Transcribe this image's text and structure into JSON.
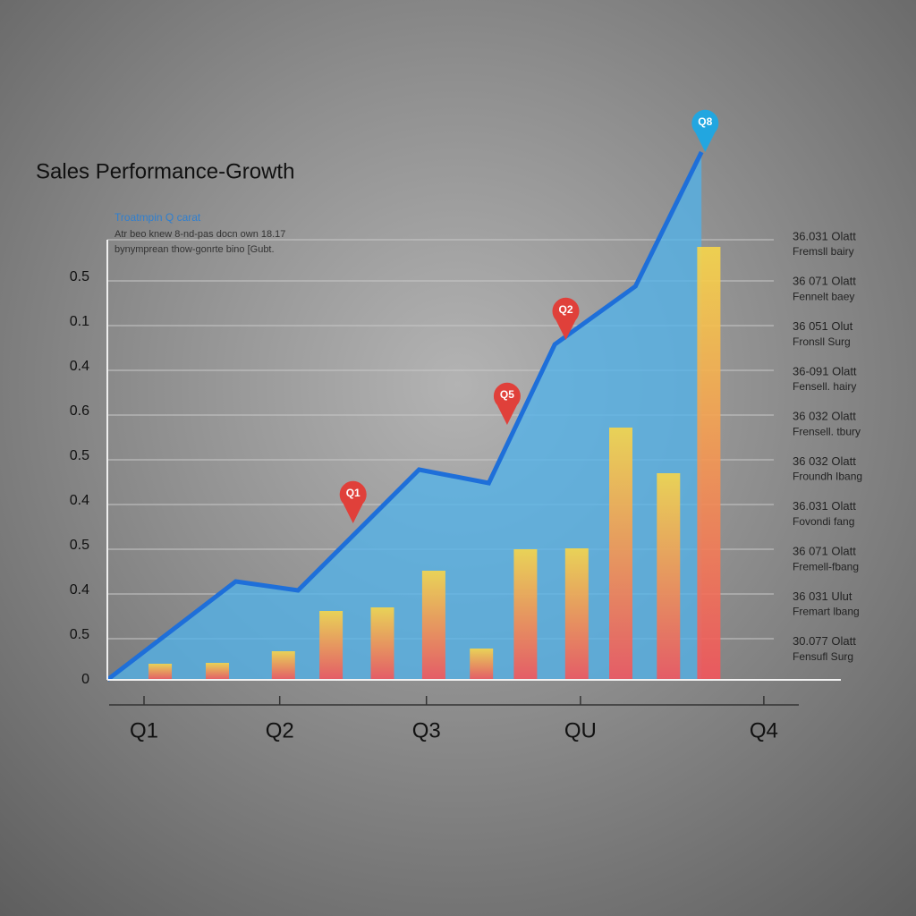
{
  "chart_data": {
    "type": "combo",
    "title": "Sales Performance-Growth",
    "subtitle": "Troatmpin Q carat",
    "notes": [
      "Atr beo knew 8-nd-pas docn own 18.17",
      "bynymprean thow-gonrte bino [Gubt."
    ],
    "xlim": [
      0,
      20
    ],
    "xticks": [
      {
        "value": 1,
        "label": "Q1"
      },
      {
        "value": 4.7,
        "label": "Q2"
      },
      {
        "value": 8.7,
        "label": "Q3"
      },
      {
        "value": 12.9,
        "label": "QU"
      },
      {
        "value": 17.9,
        "label": "Q4"
      }
    ],
    "ylim": [
      0,
      12
    ],
    "yticks": [
      0,
      {
        "value": 1,
        "label": "0.5"
      },
      {
        "value": 2,
        "label": "0.4"
      },
      {
        "value": 3,
        "label": "0.5"
      },
      {
        "value": 4,
        "label": "0.4"
      },
      {
        "value": 5,
        "label": "0.5"
      },
      {
        "value": 6,
        "label": "0.6"
      },
      {
        "value": 7,
        "label": "0.4"
      },
      {
        "value": 8,
        "label": "0.1"
      },
      {
        "value": 9,
        "label": "0.5"
      }
    ],
    "grid": true,
    "line": {
      "color": "#1e6fd9",
      "x": [
        0,
        3.5,
        5.2,
        8.5,
        10.4,
        12.2,
        14.4,
        16.2
      ],
      "values": [
        0,
        2.2,
        2.0,
        4.7,
        4.4,
        7.5,
        8.8,
        11.8
      ]
    },
    "bars": {
      "colors": [
        "#f7d64a",
        "#f2545b"
      ],
      "x": [
        1.44,
        3.0,
        4.8,
        6.1,
        7.5,
        8.9,
        10.2,
        11.4,
        12.8,
        14.0,
        15.3,
        16.4
      ],
      "values": [
        0.36,
        0.38,
        0.64,
        1.54,
        1.62,
        2.44,
        0.7,
        2.92,
        2.94,
        5.64,
        4.62,
        9.68
      ]
    },
    "annotations": [
      {
        "text": "Q1",
        "x": 6.7,
        "y": 3.5,
        "color": "#e0403a"
      },
      {
        "text": "Q5",
        "x": 10.9,
        "y": 5.7,
        "color": "#e0403a"
      },
      {
        "text": "Q2",
        "x": 12.5,
        "y": 7.6,
        "color": "#e0403a"
      },
      {
        "text": "Q8",
        "x": 16.3,
        "y": 11.8,
        "color": "#22a6e0"
      }
    ],
    "right_labels": [
      {
        "text": "36.031 Olatt",
        "subtext": "Fremsll bairy"
      },
      {
        "text": "36 071 Olatt",
        "subtext": "Fennelt baey"
      },
      {
        "text": "36 051 Olut",
        "subtext": "Fronsll Surg"
      },
      {
        "text": "36-091 Olatt",
        "subtext": "Fensell. hairy"
      },
      {
        "text": "36 032 Olatt",
        "subtext": "Frensell. tbury"
      },
      {
        "text": "36 032 Olatt",
        "subtext": "Froundh Ibang"
      },
      {
        "text": "36.031 Olatt",
        "subtext": "Fovondi fang"
      },
      {
        "text": "36 071 Olatt",
        "subtext": "Fremell-fbang"
      },
      {
        "text": "36 031 Ulut",
        "subtext": "Fremart lbang"
      },
      {
        "text": "30.077 Olatt",
        "subtext": "Fensufl Surg"
      }
    ]
  }
}
